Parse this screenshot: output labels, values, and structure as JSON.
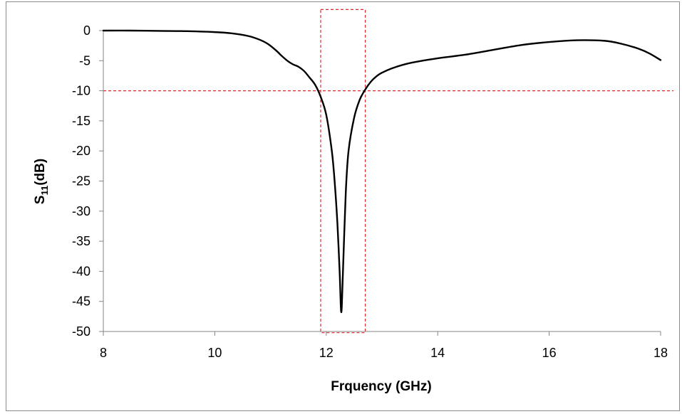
{
  "chart_data": {
    "type": "line",
    "xlabel": "Frquency (GHz)",
    "ylabel_main": "S",
    "ylabel_sub": "11",
    "ylabel_suffix": "(dB)",
    "xlim": [
      8,
      18
    ],
    "ylim": [
      -50,
      0
    ],
    "xticks": [
      8,
      10,
      12,
      14,
      16,
      18
    ],
    "yticks": [
      0,
      -5,
      -10,
      -15,
      -20,
      -25,
      -30,
      -35,
      -40,
      -45,
      -50
    ],
    "grid": false,
    "series": [
      {
        "color": "#000000",
        "x": [
          8.0,
          8.5,
          9.0,
          9.5,
          10.0,
          10.3,
          10.6,
          10.8,
          10.95,
          11.1,
          11.2,
          11.3,
          11.4,
          11.5,
          11.6,
          11.7,
          11.8,
          11.9,
          12.0,
          12.1,
          12.15,
          12.2,
          12.24,
          12.27,
          12.3,
          12.35,
          12.4,
          12.5,
          12.6,
          12.7,
          12.8,
          12.9,
          13.0,
          13.2,
          13.5,
          14.0,
          14.5,
          15.0,
          15.5,
          16.0,
          16.5,
          17.0,
          17.3,
          17.6,
          17.8,
          18.0
        ],
        "y": [
          0,
          0,
          -0.05,
          -0.1,
          -0.25,
          -0.45,
          -0.9,
          -1.5,
          -2.2,
          -3.3,
          -4.2,
          -5.0,
          -5.6,
          -6.0,
          -6.7,
          -7.8,
          -9.0,
          -11.0,
          -14.0,
          -20.0,
          -25.0,
          -32.0,
          -40.0,
          -46.8,
          -40.0,
          -27.0,
          -20.0,
          -14.5,
          -11.5,
          -9.8,
          -8.5,
          -7.6,
          -7.0,
          -6.2,
          -5.4,
          -4.6,
          -4.0,
          -3.2,
          -2.4,
          -1.9,
          -1.6,
          -1.7,
          -2.2,
          -3.0,
          -3.8,
          -4.9
        ]
      }
    ],
    "annotations": {
      "color": "#e0262a",
      "hline_y": -10,
      "band_x": [
        11.9,
        12.7
      ],
      "band_y": [
        -50.2,
        3.5
      ]
    }
  }
}
